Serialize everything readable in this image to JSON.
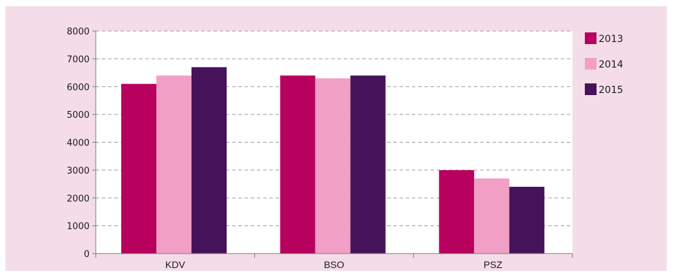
{
  "chart_data": {
    "type": "bar",
    "categories": [
      "KDV",
      "BSO",
      "PSZ"
    ],
    "series": [
      {
        "name": "2013",
        "color": "#b8005f",
        "values": [
          6100,
          6400,
          3000
        ]
      },
      {
        "name": "2014",
        "color": "#f19fc5",
        "values": [
          6400,
          6300,
          2700
        ]
      },
      {
        "name": "2015",
        "color": "#45135a",
        "values": [
          6700,
          6400,
          2400
        ]
      }
    ],
    "yticks": [
      "0",
      "1000",
      "2000",
      "3000",
      "4000",
      "5000",
      "6000",
      "7000",
      "8000"
    ],
    "ylim": [
      0,
      8000
    ],
    "grid": true,
    "legend_position": "right",
    "background": "#f4dde8",
    "plot_background": "#ffffff"
  }
}
